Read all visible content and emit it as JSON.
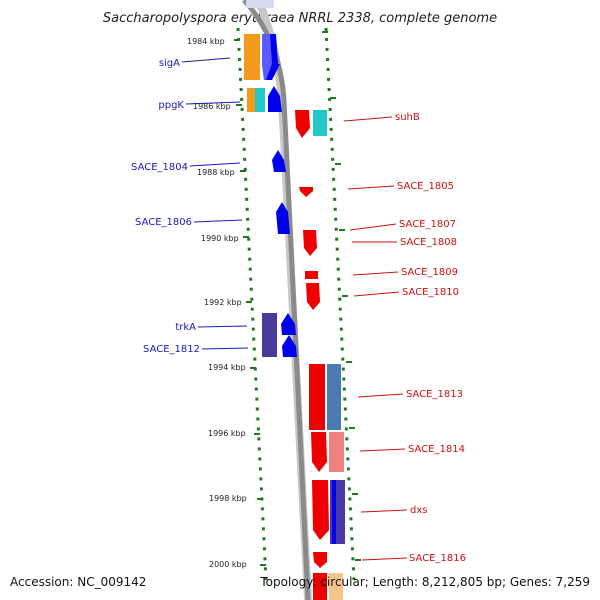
{
  "title": "Saccharopolyspora erythraea NRRL 2338, complete genome",
  "footer": {
    "accession": "Accession: NC_009142",
    "topology": "Topology: circular; Length: 8,212,805 bp; Genes: 7,259"
  },
  "scale_labels": [
    "1984 kbp",
    "1986 kbp",
    "1988 kbp",
    "1990 kbp",
    "1992 kbp",
    "1994 kbp",
    "1996 kbp",
    "1998 kbp",
    "2000 kbp"
  ],
  "left_labels": [
    "sigA",
    "ppgK",
    "SACE_1804",
    "SACE_1806",
    "trkA",
    "SACE_1812"
  ],
  "right_labels": [
    "suhB",
    "SACE_1805",
    "SACE_1807",
    "SACE_1808",
    "SACE_1809",
    "SACE_1810",
    "SACE_1813",
    "SACE_1814",
    "dxs",
    "SACE_1816"
  ],
  "colors": {
    "forward_gene": "#0000ee",
    "reverse_gene": "#ee0000",
    "feature_orange": "#f39a1c",
    "feature_cyan": "#22c8c8",
    "feature_purple": "#4a3a9a",
    "feature_steel": "#4a7ab0",
    "feature_pink": "#f08080",
    "dna_track": "#8a8a8a",
    "tick_green": "#1e7a1e",
    "left_label": "#1a1ab8",
    "right_label": "#cc1111"
  }
}
